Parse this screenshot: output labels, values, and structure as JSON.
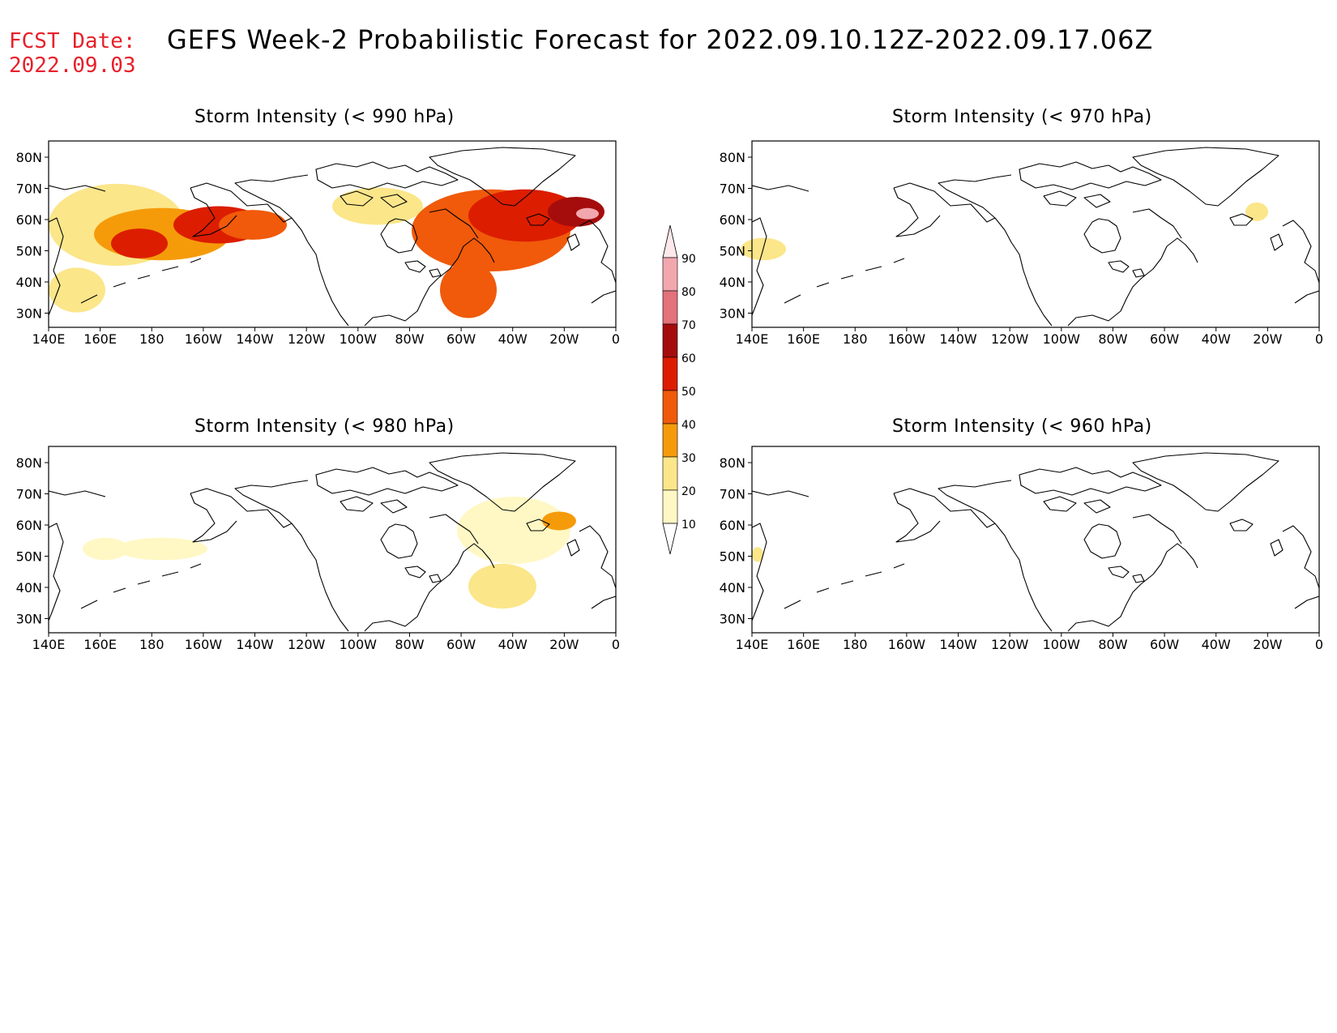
{
  "header": {
    "fcst_label": "FCST Date:",
    "fcst_date": "2022.09.03",
    "title": "GEFS Week-2 Probabilistic Forecast for 2022.09.10.12Z-2022.09.17.06Z"
  },
  "axes": {
    "lon_ticks": [
      "140E",
      "160E",
      "180",
      "160W",
      "140W",
      "120W",
      "100W",
      "80W",
      "60W",
      "40W",
      "20W",
      "0"
    ],
    "lat_ticks": [
      "80N",
      "70N",
      "60N",
      "50N",
      "40N",
      "30N"
    ]
  },
  "colorbar": {
    "levels": [
      "90",
      "80",
      "70",
      "60",
      "50",
      "40",
      "30",
      "20",
      "10"
    ],
    "colors": [
      "#f2a7ae",
      "#e3727a",
      "#a50d0d",
      "#dc1d00",
      "#f05a0a",
      "#f59b0a",
      "#fbe68a",
      "#fff8c4"
    ]
  },
  "panels": [
    {
      "id": "p990",
      "title": "Storm Intensity (< 990 hPa)",
      "intensity": "high"
    },
    {
      "id": "p970",
      "title": "Storm Intensity (< 970 hPa)",
      "intensity": "low"
    },
    {
      "id": "p980",
      "title": "Storm Intensity (< 980 hPa)",
      "intensity": "medium"
    },
    {
      "id": "p960",
      "title": "Storm Intensity (< 960 hPa)",
      "intensity": "minimal"
    }
  ]
}
